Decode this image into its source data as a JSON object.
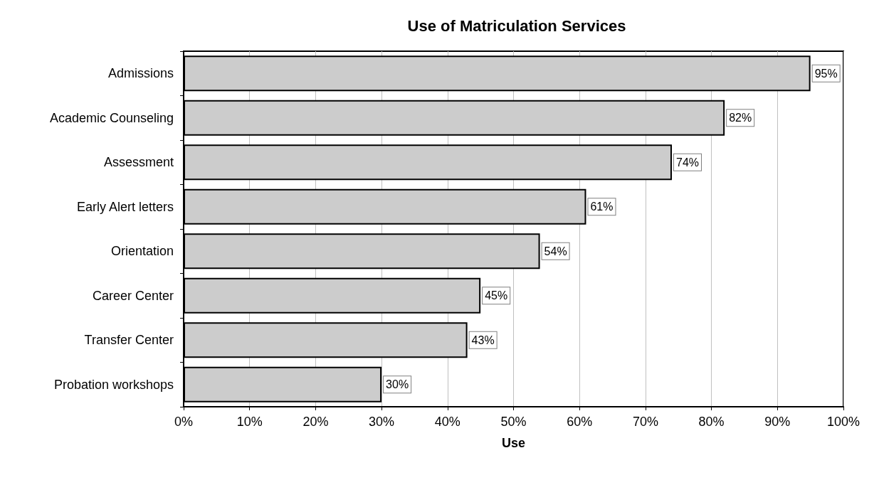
{
  "chart_data": {
    "type": "bar",
    "orientation": "horizontal",
    "title": "Use of Matriculation Services",
    "xlabel": "Use",
    "categories": [
      "Admissions",
      "Academic Counseling",
      "Assessment",
      "Early Alert letters",
      "Orientation",
      "Career Center",
      "Transfer Center",
      "Probation workshops"
    ],
    "values": [
      95,
      82,
      74,
      61,
      54,
      45,
      43,
      30
    ],
    "value_labels": [
      "95%",
      "82%",
      "74%",
      "61%",
      "54%",
      "45%",
      "43%",
      "30%"
    ],
    "color": "#cccccc",
    "xlim": [
      0,
      100
    ],
    "xticks": [
      {
        "value": 0,
        "label": "0%"
      },
      {
        "value": 10,
        "label": "10%"
      },
      {
        "value": 20,
        "label": "20%"
      },
      {
        "value": 30,
        "label": "30%"
      },
      {
        "value": 40,
        "label": "40%"
      },
      {
        "value": 50,
        "label": "50%"
      },
      {
        "value": 60,
        "label": "60%"
      },
      {
        "value": 70,
        "label": "70%"
      },
      {
        "value": 80,
        "label": "80%"
      },
      {
        "value": 90,
        "label": "90%"
      },
      {
        "value": 100,
        "label": "100%"
      }
    ],
    "grid": "x"
  }
}
